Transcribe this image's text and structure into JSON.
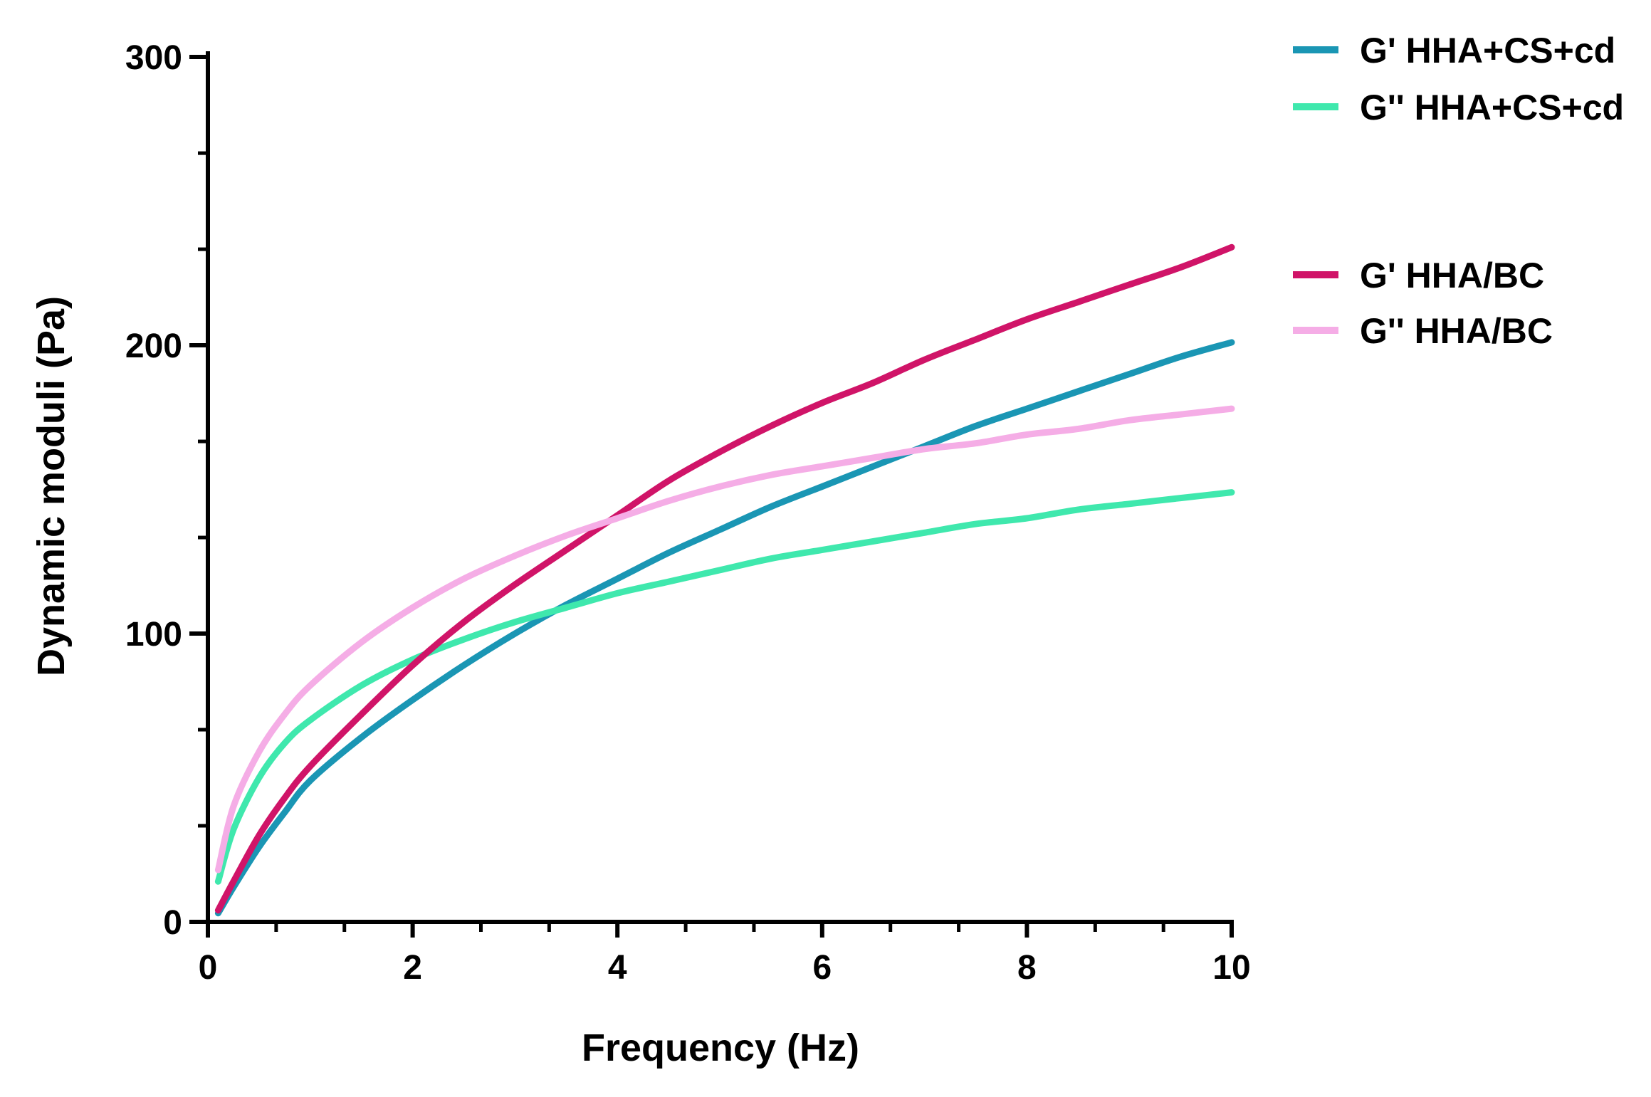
{
  "chart_data": {
    "type": "line",
    "title": "",
    "xlabel": "Frequency (Hz)",
    "ylabel": "Dynamic moduli (Pa)",
    "xlim": [
      0,
      10
    ],
    "ylim": [
      0,
      300
    ],
    "x_ticks": [
      0,
      2,
      4,
      6,
      8,
      10
    ],
    "x_tick_labels": [
      "0",
      "2",
      "4",
      "6",
      "8",
      "10"
    ],
    "y_ticks": [
      0,
      100,
      200,
      300
    ],
    "y_tick_labels": [
      "0",
      "100",
      "200",
      "300"
    ],
    "grid": false,
    "legend_position": "top-right",
    "x": [
      0.1,
      0.25,
      0.5,
      0.75,
      1,
      1.5,
      2,
      2.5,
      3,
      3.5,
      4,
      4.5,
      5,
      5.5,
      6,
      6.5,
      7,
      7.5,
      8,
      8.5,
      9,
      9.5,
      10
    ],
    "series": [
      {
        "name": "G' HHA+CS+cd",
        "color": "#1a96b4",
        "values": [
          3,
          12,
          26,
          38,
          49,
          64,
          77,
          89,
          100,
          110,
          119,
          128,
          136,
          144,
          151,
          158,
          165,
          172,
          178,
          184,
          190,
          196,
          201
        ]
      },
      {
        "name": "G'' HHA+CS+cd",
        "color": "#3fe8ad",
        "values": [
          14,
          32,
          50,
          62,
          70,
          82,
          91,
          98,
          104,
          109,
          114,
          118,
          122,
          126,
          129,
          132,
          135,
          138,
          140,
          143,
          145,
          147,
          149
        ]
      },
      {
        "name": "G' HHA/BC",
        "color": "#d01468",
        "values": [
          4,
          14,
          30,
          43,
          54,
          72,
          89,
          104,
          117,
          129,
          141,
          153,
          163,
          172,
          180,
          187,
          195,
          202,
          209,
          215,
          221,
          227,
          234
        ]
      },
      {
        "name": "G'' HHA/BC",
        "color": "#f5ade6",
        "values": [
          18,
          40,
          59,
          72,
          82,
          97,
          109,
          119,
          127,
          134,
          140,
          146,
          151,
          155,
          158,
          161,
          164,
          166,
          169,
          171,
          174,
          176,
          178
        ]
      }
    ]
  }
}
